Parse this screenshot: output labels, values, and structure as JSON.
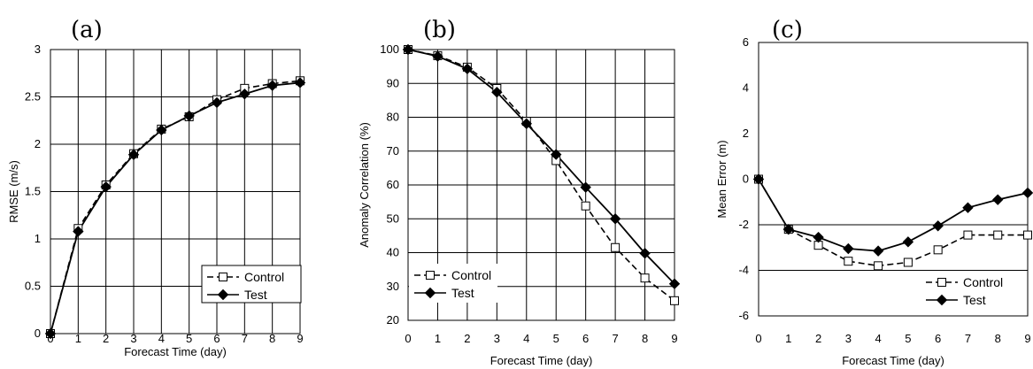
{
  "chart_data": [
    {
      "panel": "(a)",
      "type": "line",
      "xlabel": "Forecast Time (day)",
      "ylabel": "RMSE (m/s)",
      "xlim": [
        0,
        9
      ],
      "ylim": [
        0,
        3
      ],
      "xticks": [
        "0",
        "1",
        "2",
        "3",
        "4",
        "5",
        "6",
        "7",
        "8",
        "9"
      ],
      "yticks": [
        "0",
        "0.5",
        "1",
        "1.5",
        "2",
        "2.5",
        "3"
      ],
      "ytick_values": [
        0,
        0.5,
        1,
        1.5,
        2,
        2.5,
        3
      ],
      "grid": true,
      "legend_position": "bottom-right",
      "x": [
        0,
        1,
        2,
        3,
        4,
        5,
        6,
        7,
        8,
        9
      ],
      "series": [
        {
          "name": "Control",
          "style": "dashed",
          "marker": "open-square",
          "values": [
            0,
            1.11,
            1.57,
            1.9,
            2.16,
            2.29,
            2.47,
            2.59,
            2.64,
            2.67
          ]
        },
        {
          "name": "Test",
          "style": "solid",
          "marker": "filled-diamond",
          "values": [
            0,
            1.08,
            1.55,
            1.89,
            2.15,
            2.3,
            2.44,
            2.53,
            2.62,
            2.65
          ]
        }
      ]
    },
    {
      "panel": "(b)",
      "type": "line",
      "xlabel": "Forecast Time (day)",
      "ylabel": "Anomaly Correlation (%)",
      "xlim": [
        0,
        9
      ],
      "ylim": [
        20,
        100
      ],
      "xticks": [
        "0",
        "1",
        "2",
        "3",
        "4",
        "5",
        "6",
        "7",
        "8",
        "9"
      ],
      "yticks": [
        "20",
        "30",
        "40",
        "50",
        "60",
        "70",
        "80",
        "90",
        "100"
      ],
      "ytick_values": [
        20,
        30,
        40,
        50,
        60,
        70,
        80,
        90,
        100
      ],
      "grid": true,
      "legend_position": "bottom-left",
      "x": [
        0,
        1,
        2,
        3,
        4,
        5,
        6,
        7,
        8,
        9
      ],
      "series": [
        {
          "name": "Control",
          "style": "dashed",
          "marker": "open-square",
          "values": [
            100,
            98.2,
            94.8,
            88.5,
            78.8,
            67.2,
            53.8,
            41.5,
            32.5,
            25.8
          ]
        },
        {
          "name": "Test",
          "style": "solid",
          "marker": "filled-diamond",
          "values": [
            100,
            98.0,
            94.3,
            87.4,
            78.1,
            69.0,
            59.3,
            50.0,
            39.8,
            30.8
          ]
        }
      ]
    },
    {
      "panel": "(c)",
      "type": "line",
      "xlabel": "Forecast Time (day)",
      "ylabel": "Mean Error (m)",
      "xlim": [
        0,
        9
      ],
      "ylim": [
        -6,
        6
      ],
      "xticks": [
        "0",
        "1",
        "2",
        "3",
        "4",
        "5",
        "6",
        "7",
        "8",
        "9"
      ],
      "yticks": [
        "-6",
        "-4",
        "-2",
        "0",
        "2",
        "4",
        "6"
      ],
      "ytick_values": [
        -6,
        -4,
        -2,
        0,
        2,
        4,
        6
      ],
      "grid": false,
      "legend_position": "bottom-right",
      "x": [
        0,
        1,
        2,
        3,
        4,
        5,
        6,
        7,
        8,
        9
      ],
      "series": [
        {
          "name": "Control",
          "style": "dashed",
          "marker": "open-square",
          "values": [
            0.0,
            -2.2,
            -2.9,
            -3.6,
            -3.8,
            -3.65,
            -3.1,
            -2.45,
            -2.45,
            -2.45
          ]
        },
        {
          "name": "Test",
          "style": "solid",
          "marker": "filled-diamond",
          "values": [
            0.0,
            -2.2,
            -2.55,
            -3.05,
            -3.15,
            -2.75,
            -2.05,
            -1.25,
            -0.9,
            -0.6
          ]
        }
      ]
    }
  ]
}
